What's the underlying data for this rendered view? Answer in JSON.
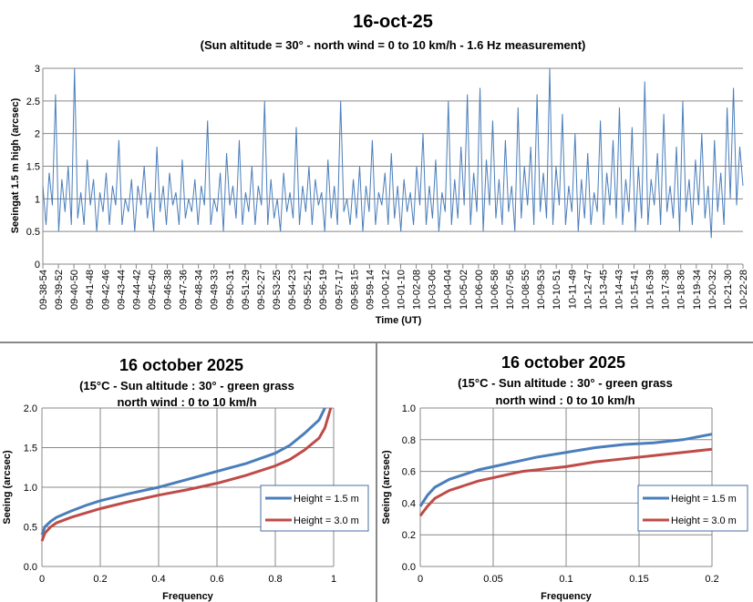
{
  "chart_data": [
    {
      "type": "line",
      "title": "16-oct-25",
      "subtitle": "(Sun altitude = 30° - north wind = 0 to 10 km/h - 1.6 Hz measurement)",
      "xlabel": "Time (UT)",
      "ylabel": "Seeingat  1.5 m high (arcsec)",
      "ylim": [
        0,
        3
      ],
      "yticks": [
        "0",
        "0.5",
        "1",
        "1.5",
        "2",
        "2.5",
        "3"
      ],
      "grid": true,
      "xticks": [
        "09-38-54",
        "09-39-52",
        "09-40-50",
        "09-41-48",
        "09-42-46",
        "09-43-44",
        "09-44-42",
        "09-45-40",
        "09-46-38",
        "09-47-36",
        "09-48-34",
        "09-49-33",
        "09-50-31",
        "09-51-29",
        "09-52-27",
        "09-53-25",
        "09-54-23",
        "09-55-21",
        "09-56-19",
        "09-57-17",
        "09-58-15",
        "09-59-14",
        "10-00-12",
        "10-01-10",
        "10-02-08",
        "10-03-06",
        "10-04-04",
        "10-05-02",
        "10-06-00",
        "10-06-58",
        "10-07-56",
        "10-08-55",
        "10-09-53",
        "10-10-51",
        "10-11-49",
        "10-12-47",
        "10-13-45",
        "10-14-43",
        "10-15-41",
        "10-16-39",
        "10-17-38",
        "10-18-36",
        "10-19-34",
        "10-20-32",
        "10-21-30",
        "10-22-28"
      ],
      "color": "#4a7ebb",
      "values": [
        1.2,
        0.6,
        1.4,
        0.9,
        2.6,
        0.5,
        1.3,
        0.8,
        1.5,
        0.6,
        3.0,
        0.7,
        1.1,
        0.6,
        1.6,
        0.9,
        1.3,
        0.5,
        1.1,
        0.8,
        1.4,
        0.6,
        1.2,
        0.9,
        1.9,
        0.6,
        1.0,
        0.8,
        1.3,
        0.5,
        1.2,
        0.9,
        1.5,
        0.7,
        1.1,
        0.5,
        1.8,
        0.8,
        1.2,
        0.6,
        1.4,
        0.9,
        1.1,
        0.6,
        1.6,
        0.7,
        1.0,
        0.8,
        1.3,
        0.6,
        1.2,
        0.9,
        2.2,
        0.6,
        1.0,
        0.8,
        1.4,
        0.5,
        1.7,
        0.9,
        1.2,
        0.7,
        1.9,
        0.6,
        1.1,
        0.8,
        1.5,
        0.6,
        1.2,
        0.9,
        2.5,
        0.6,
        1.3,
        0.7,
        1.0,
        0.5,
        1.4,
        0.8,
        1.1,
        0.7,
        2.1,
        0.6,
        1.2,
        0.8,
        1.5,
        0.6,
        1.3,
        0.9,
        1.1,
        0.5,
        1.6,
        0.7,
        1.2,
        0.6,
        2.5,
        0.8,
        1.0,
        0.6,
        1.3,
        0.7,
        1.5,
        0.5,
        1.2,
        0.8,
        1.9,
        0.6,
        1.1,
        0.9,
        1.4,
        0.6,
        1.7,
        0.7,
        1.2,
        0.5,
        1.3,
        0.8,
        1.1,
        0.6,
        1.5,
        0.9,
        2.0,
        0.6,
        1.2,
        0.7,
        1.6,
        0.5,
        1.1,
        0.8,
        2.5,
        0.6,
        1.3,
        0.7,
        1.8,
        0.9,
        2.6,
        0.6,
        1.4,
        0.8,
        2.7,
        0.5,
        1.6,
        0.9,
        2.2,
        0.7,
        1.3,
        0.6,
        1.9,
        0.8,
        1.2,
        0.5,
        2.4,
        0.7,
        1.5,
        0.9,
        1.8,
        0.6,
        2.6,
        0.8,
        1.4,
        0.7,
        3.0,
        0.6,
        1.5,
        0.9,
        2.3,
        0.6,
        1.2,
        0.8,
        2.0,
        0.5,
        1.3,
        0.7,
        1.7,
        0.6,
        1.1,
        0.8,
        2.2,
        0.6,
        1.4,
        0.9,
        1.9,
        0.7,
        2.4,
        0.6,
        1.3,
        0.8,
        2.1,
        0.5,
        1.5,
        0.7,
        2.8,
        0.6,
        1.3,
        0.9,
        1.7,
        0.6,
        2.3,
        0.8,
        1.2,
        0.7,
        1.8,
        0.5,
        2.5,
        0.8,
        1.3,
        0.6,
        1.6,
        0.9,
        2.0,
        0.7,
        1.2,
        0.4,
        1.9,
        0.8,
        1.4,
        0.6,
        2.4,
        1.0,
        2.7,
        0.9,
        1.8,
        1.2
      ]
    },
    {
      "type": "line",
      "title": "16 october  2025",
      "subtitle1": "(15°C - Sun altitude : 30° - green grass",
      "subtitle2": "north wind : 0 to 10 km/h",
      "xlabel": "Frequency",
      "ylabel": "Seeing (arcsec)",
      "xlim": [
        0,
        1
      ],
      "ylim": [
        0,
        2
      ],
      "xticks": [
        "0",
        "0.2",
        "0.4",
        "0.6",
        "0.8",
        "1"
      ],
      "yticks": [
        "0.0",
        "0.5",
        "1.0",
        "1.5",
        "2.0"
      ],
      "legend_position": "right",
      "series": [
        {
          "name": "Height = 1.5 m",
          "color": "#4a7ebb",
          "x": [
            0,
            0.01,
            0.03,
            0.05,
            0.1,
            0.15,
            0.2,
            0.3,
            0.4,
            0.5,
            0.6,
            0.7,
            0.8,
            0.85,
            0.9,
            0.95,
            0.97
          ],
          "y": [
            0.4,
            0.5,
            0.57,
            0.62,
            0.7,
            0.77,
            0.83,
            0.92,
            1.0,
            1.1,
            1.2,
            1.3,
            1.43,
            1.53,
            1.68,
            1.85,
            2.0
          ]
        },
        {
          "name": "Height = 3.0 m",
          "color": "#be4b48",
          "x": [
            0,
            0.01,
            0.03,
            0.05,
            0.1,
            0.2,
            0.3,
            0.4,
            0.5,
            0.6,
            0.7,
            0.8,
            0.85,
            0.9,
            0.95,
            0.97,
            0.99
          ],
          "y": [
            0.32,
            0.42,
            0.5,
            0.55,
            0.62,
            0.73,
            0.82,
            0.9,
            0.97,
            1.05,
            1.15,
            1.27,
            1.35,
            1.47,
            1.62,
            1.75,
            2.0
          ]
        }
      ]
    },
    {
      "type": "line",
      "title": "16 october  2025",
      "subtitle1": "(15°C - Sun altitude : 30° - green grass",
      "subtitle2": "north wind : 0 to 10 km/h",
      "xlabel": "Frequency",
      "ylabel": "Seeing (arcsec)",
      "xlim": [
        0,
        0.2
      ],
      "ylim": [
        0,
        1
      ],
      "xticks": [
        "0",
        "0.05",
        "0.1",
        "0.15",
        "0.2"
      ],
      "yticks": [
        "0.0",
        "0.2",
        "0.4",
        "0.6",
        "0.8",
        "1.0"
      ],
      "legend_position": "right",
      "series": [
        {
          "name": "Height = 1.5 m",
          "color": "#4a7ebb",
          "x": [
            0,
            0.005,
            0.01,
            0.02,
            0.03,
            0.04,
            0.05,
            0.06,
            0.07,
            0.08,
            0.1,
            0.12,
            0.14,
            0.16,
            0.18,
            0.2
          ],
          "y": [
            0.38,
            0.45,
            0.5,
            0.55,
            0.58,
            0.61,
            0.63,
            0.65,
            0.67,
            0.69,
            0.72,
            0.75,
            0.77,
            0.78,
            0.8,
            0.835
          ]
        },
        {
          "name": "Height = 3.0 m",
          "color": "#be4b48",
          "x": [
            0,
            0.005,
            0.01,
            0.02,
            0.03,
            0.04,
            0.05,
            0.06,
            0.07,
            0.08,
            0.1,
            0.12,
            0.14,
            0.16,
            0.18,
            0.2
          ],
          "y": [
            0.32,
            0.38,
            0.43,
            0.48,
            0.51,
            0.54,
            0.56,
            0.58,
            0.6,
            0.61,
            0.63,
            0.66,
            0.68,
            0.7,
            0.72,
            0.74
          ]
        }
      ]
    }
  ]
}
